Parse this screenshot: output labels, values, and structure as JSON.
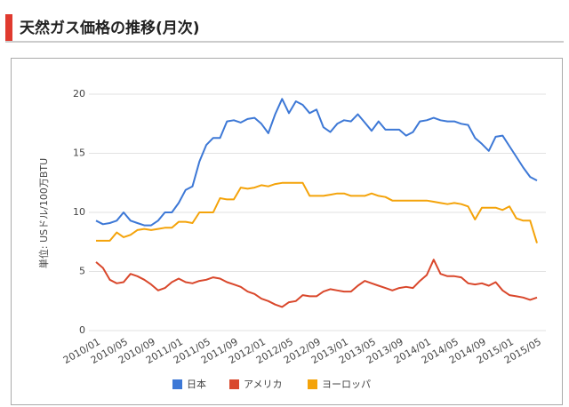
{
  "header": {
    "title": "天然ガス価格の推移(月次)"
  },
  "chart_data": {
    "type": "line",
    "y_label": "単位: USドル/100万BTU",
    "categories": [
      "2010/01",
      null,
      null,
      null,
      "2010/05",
      null,
      null,
      null,
      "2010/09",
      null,
      null,
      null,
      "2011/01",
      null,
      null,
      null,
      "2011/05",
      null,
      null,
      null,
      "2011/09",
      null,
      null,
      null,
      "2012/01",
      null,
      null,
      null,
      "2012/05",
      null,
      null,
      null,
      "2012/09",
      null,
      null,
      null,
      "2013/01",
      null,
      null,
      null,
      "2013/05",
      null,
      null,
      null,
      "2013/09",
      null,
      null,
      null,
      "2014/01",
      null,
      null,
      null,
      "2014/05",
      null,
      null,
      null,
      "2014/09",
      null,
      null,
      null,
      "2015/01",
      null,
      null,
      null,
      "2015/05"
    ],
    "series": [
      {
        "name": "日本",
        "color": "#3d78d6",
        "values": [
          9.3,
          9.0,
          9.1,
          9.3,
          10.0,
          9.3,
          9.1,
          8.9,
          8.9,
          9.3,
          10.0,
          10.0,
          10.8,
          11.9,
          12.2,
          14.3,
          15.7,
          16.3,
          16.3,
          17.7,
          17.8,
          17.6,
          17.9,
          18.0,
          17.5,
          16.7,
          18.3,
          19.6,
          18.4,
          19.4,
          19.1,
          18.4,
          18.7,
          17.2,
          16.8,
          17.5,
          17.8,
          17.7,
          18.3,
          17.6,
          16.9,
          17.7,
          17.0,
          17.0,
          17.0,
          16.5,
          16.8,
          17.7,
          17.8,
          18.0,
          17.8,
          17.7,
          17.7,
          17.5,
          17.4,
          16.3,
          15.8,
          15.2,
          16.4,
          16.5,
          15.6,
          14.7,
          13.8,
          13.0,
          12.7
        ]
      },
      {
        "name": "アメリカ",
        "color": "#d9472b",
        "values": [
          5.8,
          5.3,
          4.3,
          4.0,
          4.1,
          4.8,
          4.6,
          4.3,
          3.9,
          3.4,
          3.6,
          4.1,
          4.4,
          4.1,
          4.0,
          4.2,
          4.3,
          4.5,
          4.4,
          4.1,
          3.9,
          3.7,
          3.3,
          3.1,
          2.7,
          2.5,
          2.2,
          2.0,
          2.4,
          2.5,
          3.0,
          2.9,
          2.9,
          3.3,
          3.5,
          3.4,
          3.3,
          3.3,
          3.8,
          4.2,
          4.0,
          3.8,
          3.6,
          3.4,
          3.6,
          3.7,
          3.6,
          4.2,
          4.7,
          6.0,
          4.8,
          4.6,
          4.6,
          4.5,
          4.0,
          3.9,
          4.0,
          3.8,
          4.1,
          3.4,
          3.0,
          2.9,
          2.8,
          2.6,
          2.8
        ]
      },
      {
        "name": "ヨーロッパ",
        "color": "#f4a30a",
        "values": [
          7.6,
          7.6,
          7.6,
          8.3,
          7.9,
          8.1,
          8.5,
          8.6,
          8.5,
          8.6,
          8.7,
          8.7,
          9.2,
          9.2,
          9.1,
          10.0,
          10.0,
          10.0,
          11.2,
          11.1,
          11.1,
          12.1,
          12.0,
          12.1,
          12.3,
          12.2,
          12.4,
          12.5,
          12.5,
          12.5,
          12.5,
          11.4,
          11.4,
          11.4,
          11.5,
          11.6,
          11.6,
          11.4,
          11.4,
          11.4,
          11.6,
          11.4,
          11.3,
          11.0,
          11.0,
          11.0,
          11.0,
          11.0,
          11.0,
          10.9,
          10.8,
          10.7,
          10.8,
          10.7,
          10.5,
          9.4,
          10.4,
          10.4,
          10.4,
          10.2,
          10.5,
          9.5,
          9.3,
          9.3,
          7.4
        ]
      }
    ],
    "ylim": [
      0,
      20
    ],
    "yticks": [
      0,
      5,
      10,
      15,
      20
    ],
    "grid": true,
    "legend": "bottom"
  }
}
